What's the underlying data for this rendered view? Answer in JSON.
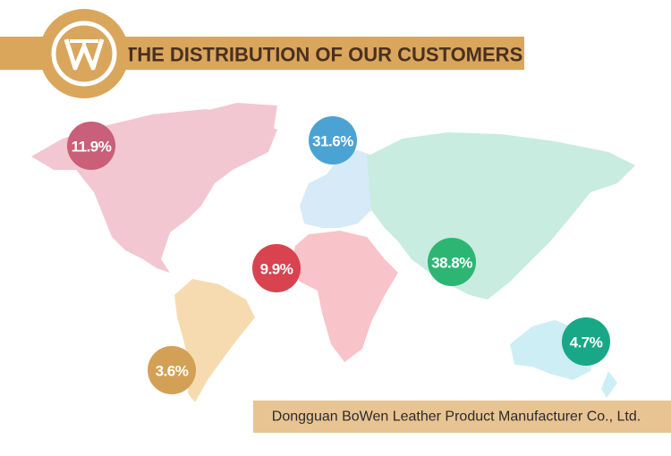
{
  "header": {
    "title": "THE DISTRIBUTION OF OUR CUSTOMERS"
  },
  "regions": [
    {
      "name": "north-america",
      "label": "11.9%",
      "color": "#c95f78"
    },
    {
      "name": "europe",
      "label": "31.6%",
      "color": "#4ba3d3"
    },
    {
      "name": "africa",
      "label": "9.9%",
      "color": "#d8434f"
    },
    {
      "name": "asia",
      "label": "38.8%",
      "color": "#2db673"
    },
    {
      "name": "south-america",
      "label": "3.6%",
      "color": "#d3a156"
    },
    {
      "name": "oceania",
      "label": "4.7%",
      "color": "#19a887"
    }
  ],
  "footer": {
    "company": "Dongguan BoWen Leather Product Manufacturer Co., Ltd."
  }
}
